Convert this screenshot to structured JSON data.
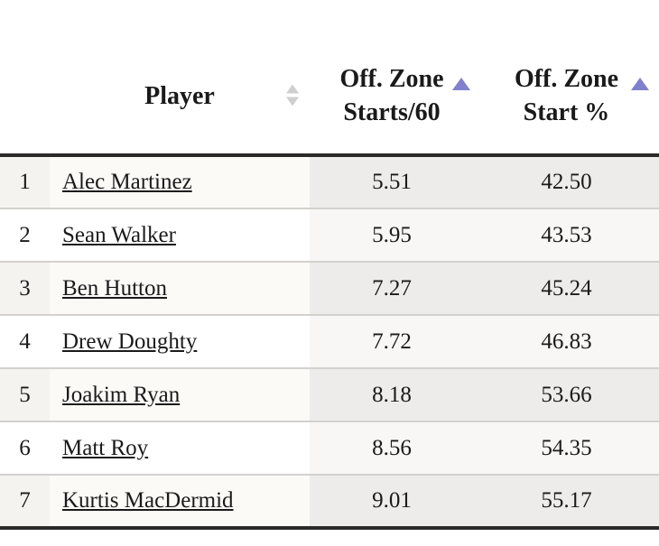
{
  "table": {
    "headers": {
      "rank": "",
      "player": "Player",
      "col_off_zone_starts_per60": {
        "line1": "Off. Zone",
        "line2": "Starts/60"
      },
      "col_off_zone_start_pct": {
        "line1": "Off. Zone",
        "line2": "Start %"
      }
    },
    "sort_state": {
      "player": "unsorted",
      "off_zone_starts_per60": "ascending",
      "off_zone_start_pct": "ascending"
    },
    "rows": [
      {
        "rank": "1",
        "player": "Alec Martinez",
        "off_zone_starts_per60": "5.51",
        "off_zone_start_pct": "42.50"
      },
      {
        "rank": "2",
        "player": "Sean Walker",
        "off_zone_starts_per60": "5.95",
        "off_zone_start_pct": "43.53"
      },
      {
        "rank": "3",
        "player": "Ben Hutton",
        "off_zone_starts_per60": "7.27",
        "off_zone_start_pct": "45.24"
      },
      {
        "rank": "4",
        "player": "Drew Doughty",
        "off_zone_starts_per60": "7.72",
        "off_zone_start_pct": "46.83"
      },
      {
        "rank": "5",
        "player": "Joakim Ryan",
        "off_zone_starts_per60": "8.18",
        "off_zone_start_pct": "53.66"
      },
      {
        "rank": "6",
        "player": "Matt Roy",
        "off_zone_starts_per60": "8.56",
        "off_zone_start_pct": "54.35"
      },
      {
        "rank": "7",
        "player": "Kurtis MacDermid",
        "off_zone_starts_per60": "9.01",
        "off_zone_start_pct": "55.17"
      }
    ]
  },
  "colors": {
    "sort_ascending_arrow": "#8080cc",
    "sort_unsorted_arrow": "#cfcfcf",
    "header_border": "#2b2a28",
    "row_divider": "#d2d1ce",
    "text": "#1a1a1a"
  }
}
